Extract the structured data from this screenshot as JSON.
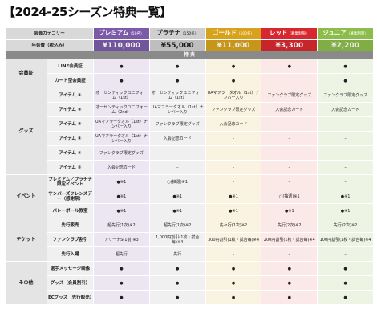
{
  "title": "【2024-25シーズン特典一覧】",
  "header": {
    "category_label": "会員カテゴリー",
    "fee_label": "年会費（税込み）",
    "benefits_label": "特 典"
  },
  "columns": [
    {
      "name": "プレミアム",
      "limit": "（50名）",
      "fee": "¥110,000",
      "color": "#7b5ba8",
      "tint": "#ebe6f2",
      "text_color": "#ffffff"
    },
    {
      "name": "プラチナ",
      "limit": "（150名）",
      "fee": "¥55,000",
      "color": "#cfcfcf",
      "tint": "#f0f0f0",
      "text_color": "#222222"
    },
    {
      "name": "ゴールド",
      "limit": "（500名）",
      "fee": "¥11,000",
      "color": "#d8a21c",
      "tint": "#fbf3e2",
      "text_color": "#ffffff"
    },
    {
      "name": "レッド",
      "limit": "（募集制限）",
      "fee": "¥3,300",
      "color": "#d7282f",
      "tint": "#fbe9e7",
      "text_color": "#ffffff"
    },
    {
      "name": "ジュニア",
      "limit": "（募集制限）",
      "fee": "¥2,200",
      "color": "#8cbd4a",
      "tint": "#eef4e4",
      "text_color": "#ffffff"
    }
  ],
  "sections": [
    {
      "name": "会員証",
      "rows": [
        {
          "label": "LINE会員証",
          "cells": [
            "●",
            "●",
            "●",
            "●",
            "●"
          ]
        },
        {
          "label": "カード型会員証",
          "cells": [
            "●",
            "●",
            "●",
            null,
            "●"
          ]
        }
      ]
    },
    {
      "name": "グッズ",
      "rows": [
        {
          "label": "アイテム ①",
          "cells": [
            "オーセンティックユニフォーム（1st）",
            "オーセンティックユニフォーム（1st）",
            "UAマフラータオル（1st）ナンバー入り",
            "ファンクラブ限定グッズ",
            "ファンクラブ限定グッズ"
          ]
        },
        {
          "label": "アイテム ②",
          "cells": [
            "オーセンティックユニフォーム（2nd）",
            "UAマフラータオル（1st）ナンバー入り",
            "ファンクラブ限定グッズ",
            "入会記念カード",
            "入会記念カード"
          ]
        },
        {
          "label": "アイテム ③",
          "cells": [
            "UAマフラータオル（1st）ナンバー入り",
            "ファンクラブ限定グッズ",
            "入会記念カード",
            "–",
            "–"
          ]
        },
        {
          "label": "アイテム ④",
          "cells": [
            "UAマフラータオル（1st）ナンバー入り",
            "入会記念カード",
            "–",
            "–",
            "–"
          ]
        },
        {
          "label": "アイテム ⑤",
          "cells": [
            "ファンクラブ限定グッズ",
            "–",
            "–",
            "–",
            "–"
          ]
        },
        {
          "label": "アイテム ⑥",
          "cells": [
            "入会記念カード",
            "–",
            "–",
            "–",
            "–"
          ]
        }
      ]
    },
    {
      "name": "イベント",
      "rows": [
        {
          "label": "プレミアム／プラチナ限定イベント",
          "cells": [
            "●※1",
            "○(抽選)※1",
            "–",
            "–",
            "–"
          ]
        },
        {
          "label": "サンバーズフレンズデー（感謝祭）",
          "cells": [
            "●※1",
            "●※1",
            "●※1",
            "○(抽選)※1",
            "●※1"
          ]
        },
        {
          "label": "バレーボール教室",
          "cells": [
            "●※1",
            "●※1",
            "●※1",
            "●※1",
            "●※1"
          ]
        }
      ]
    },
    {
      "name": "チケット",
      "rows": [
        {
          "label": "先行販売",
          "cells": [
            "超先行(1次)※2",
            "超先行(1次)※2",
            "先々行(1次)※2",
            "先行(2次)※2",
            "先行(2次)※2"
          ]
        },
        {
          "label": "ファンクラブ割引",
          "cells": [
            "アリーナS(1割)※3",
            "1,000円割引(1枚・試合毎)※4",
            "300円割引(1枚・試合毎)※4",
            "200円割引(1枚・試合毎)※4",
            "100円割引(1枚・試合毎)※4"
          ]
        },
        {
          "label": "先行入場",
          "cells": [
            "超先行",
            "先行",
            "–",
            "–",
            "–"
          ]
        }
      ]
    },
    {
      "name": "その他",
      "rows": [
        {
          "label": "選手メッセージ画像",
          "cells": [
            "●",
            "●",
            "●",
            "●",
            "●"
          ]
        },
        {
          "label": "グッズ（会員割引）",
          "cells": [
            "●",
            "●",
            "●",
            "●",
            "●"
          ]
        },
        {
          "label": "ECグッズ（先行販売）",
          "cells": [
            "●",
            "●",
            "●",
            "●",
            "●"
          ]
        }
      ]
    }
  ]
}
